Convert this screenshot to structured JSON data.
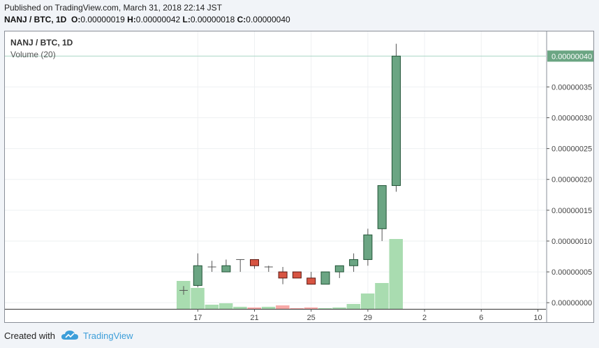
{
  "header": {
    "published": "Published on TradingView.com, March 31, 2018 22:14 JST",
    "symbol_line": "NANJ / BTC, 1D",
    "o_label": "O:",
    "o_value": "0.00000019",
    "h_label": "H:",
    "h_value": "0.00000042",
    "l_label": "L:",
    "l_value": "0.00000018",
    "c_label": "C:",
    "c_value": "0.00000040"
  },
  "legend": {
    "symbol": "NANJ / BTC, 1D",
    "volume": "Volume (20)"
  },
  "footer": {
    "created_with": "Created with",
    "brand": "TradingView",
    "logo_icon": "tradingview-cloud-icon"
  },
  "colors": {
    "up": "#6ba583",
    "down": "#d75442",
    "up_border": "#225437",
    "down_border": "#5b1a13",
    "vol_up": "#a9dcb0",
    "vol_down": "#f7a9a7",
    "last_price_bg": "#6ba583"
  },
  "chart_data": {
    "type": "candlestick",
    "symbol": "NANJ / BTC",
    "interval": "1D",
    "ylim": [
      -1e-08,
      4.4e-07
    ],
    "y_ticks": [
      "0.00000000",
      "0.00000005",
      "0.00000010",
      "0.00000015",
      "0.00000020",
      "0.00000025",
      "0.00000030",
      "0.00000035"
    ],
    "x_ticks": [
      "17",
      "21",
      "25",
      "29",
      "2",
      "6",
      "10"
    ],
    "last_price": "0.00000040",
    "candles": [
      {
        "date": "2018-03-16",
        "open": 2e-08,
        "high": 2.7e-08,
        "low": 1.3e-08,
        "close": 2e-08
      },
      {
        "date": "2018-03-17",
        "open": 2.8e-08,
        "high": 8e-08,
        "low": 2.5e-08,
        "close": 6e-08
      },
      {
        "date": "2018-03-18",
        "open": 5.8e-08,
        "high": 6.8e-08,
        "low": 5e-08,
        "close": 5.8e-08
      },
      {
        "date": "2018-03-19",
        "open": 5e-08,
        "high": 7e-08,
        "low": 5e-08,
        "close": 6e-08
      },
      {
        "date": "2018-03-20",
        "open": 7e-08,
        "high": 7e-08,
        "low": 5e-08,
        "close": 7e-08
      },
      {
        "date": "2018-03-21",
        "open": 7e-08,
        "high": 7e-08,
        "low": 5.5e-08,
        "close": 6e-08
      },
      {
        "date": "2018-03-22",
        "open": 5.8e-08,
        "high": 6e-08,
        "low": 5e-08,
        "close": 5.8e-08
      },
      {
        "date": "2018-03-23",
        "open": 5e-08,
        "high": 5.8e-08,
        "low": 3e-08,
        "close": 4e-08
      },
      {
        "date": "2018-03-24",
        "open": 5e-08,
        "high": 5e-08,
        "low": 4e-08,
        "close": 4e-08
      },
      {
        "date": "2018-03-25",
        "open": 4e-08,
        "high": 5e-08,
        "low": 3e-08,
        "close": 3e-08
      },
      {
        "date": "2018-03-26",
        "open": 3e-08,
        "high": 5e-08,
        "low": 3e-08,
        "close": 5e-08
      },
      {
        "date": "2018-03-27",
        "open": 5e-08,
        "high": 6e-08,
        "low": 4e-08,
        "close": 6e-08
      },
      {
        "date": "2018-03-28",
        "open": 6e-08,
        "high": 8e-08,
        "low": 5e-08,
        "close": 7e-08
      },
      {
        "date": "2018-03-29",
        "open": 7e-08,
        "high": 1.2e-07,
        "low": 6e-08,
        "close": 1.1e-07
      },
      {
        "date": "2018-03-30",
        "open": 1.2e-07,
        "high": 1.9e-07,
        "low": 1e-07,
        "close": 1.9e-07
      },
      {
        "date": "2018-03-31",
        "open": 1.9e-07,
        "high": 4.2e-07,
        "low": 1.8e-07,
        "close": 4e-07
      }
    ],
    "volume": [
      {
        "date": "2018-03-16",
        "value": 0.4,
        "direction": "up"
      },
      {
        "date": "2018-03-17",
        "value": 0.3,
        "direction": "up"
      },
      {
        "date": "2018-03-18",
        "value": 0.06,
        "direction": "up"
      },
      {
        "date": "2018-03-19",
        "value": 0.08,
        "direction": "up"
      },
      {
        "date": "2018-03-20",
        "value": 0.03,
        "direction": "up"
      },
      {
        "date": "2018-03-21",
        "value": 0.02,
        "direction": "down"
      },
      {
        "date": "2018-03-22",
        "value": 0.03,
        "direction": "up"
      },
      {
        "date": "2018-03-23",
        "value": 0.05,
        "direction": "down"
      },
      {
        "date": "2018-03-24",
        "value": 0.01,
        "direction": "down"
      },
      {
        "date": "2018-03-25",
        "value": 0.02,
        "direction": "down"
      },
      {
        "date": "2018-03-26",
        "value": 0.01,
        "direction": "up"
      },
      {
        "date": "2018-03-27",
        "value": 0.02,
        "direction": "up"
      },
      {
        "date": "2018-03-28",
        "value": 0.07,
        "direction": "up"
      },
      {
        "date": "2018-03-29",
        "value": 0.22,
        "direction": "up"
      },
      {
        "date": "2018-03-30",
        "value": 0.37,
        "direction": "up"
      },
      {
        "date": "2018-03-31",
        "value": 1.0,
        "direction": "up"
      }
    ],
    "grid": true
  }
}
